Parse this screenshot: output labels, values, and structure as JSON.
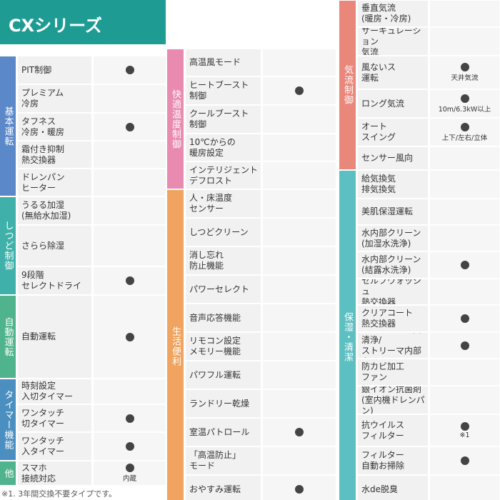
{
  "header": {
    "title": "CXシリーズ",
    "color": "#1e9c94"
  },
  "footnote": "※1. 3年間交換不要タイプです。",
  "columns": [
    {
      "groups": [
        {
          "label": "基本運転",
          "color": "#5b88c8",
          "rows": [
            {
              "name": "PIT制御",
              "mark": true
            },
            {
              "name": "プレミアム\n冷房",
              "mark": false
            },
            {
              "name": "タフネス\n冷房・暖房",
              "mark": true
            },
            {
              "name": "霜付き抑制\n熱交換器",
              "mark": false
            },
            {
              "name": "ドレンパン\nヒーター",
              "mark": false
            }
          ]
        },
        {
          "label": "しつど制御",
          "color": "#3fb1aa",
          "rows": [
            {
              "name": "うるる加湿\n(無給水加湿)",
              "mark": false
            },
            {
              "name": "さらら除湿",
              "mark": false
            },
            {
              "name": "9段階\nセレクトドライ",
              "mark": true
            }
          ]
        },
        {
          "label": "自動運転",
          "color": "#4fb38d",
          "rows": [
            {
              "name": "自動運転",
              "mark": true
            }
          ]
        },
        {
          "label": "タイマー機能",
          "color": "#4a8fc0",
          "rows": [
            {
              "name": "時刻設定\n入切タイマー",
              "mark": false
            },
            {
              "name": "ワンタッチ\n切タイマー",
              "mark": true
            },
            {
              "name": "ワンタッチ\n入タイマー",
              "mark": true
            }
          ]
        },
        {
          "label": "他",
          "color": "#4fb38d",
          "rows": [
            {
              "name": "スマホ\n接続対応",
              "mark": true,
              "note": "内蔵"
            }
          ]
        }
      ]
    },
    {
      "groups": [
        {
          "label": "快適温度制御",
          "color": "#e98bb0",
          "rows": [
            {
              "name": "高温風モード",
              "mark": false
            },
            {
              "name": "ヒートブースト\n制御",
              "mark": true
            },
            {
              "name": "クールブースト\n制御",
              "mark": false
            },
            {
              "name": "10℃からの\n暖房設定",
              "mark": false
            },
            {
              "name": "インテリジェント\nデフロスト",
              "mark": false
            }
          ]
        },
        {
          "label": "生活便利",
          "color": "#f0a45f",
          "rows": [
            {
              "name": "人・床温度\nセンサー",
              "mark": false
            },
            {
              "name": "しつどクリーン",
              "mark": false
            },
            {
              "name": "消し忘れ\n防止機能",
              "mark": false
            },
            {
              "name": "パワーセレクト",
              "mark": false
            },
            {
              "name": "音声応答機能",
              "mark": false
            },
            {
              "name": "リモコン設定\nメモリー機能",
              "mark": false
            },
            {
              "name": "パワフル運転",
              "mark": false
            },
            {
              "name": "ランドリー乾燥",
              "mark": false
            },
            {
              "name": "室温パトロール",
              "mark": true
            },
            {
              "name": "「高温防止」\nモード",
              "mark": false
            },
            {
              "name": "おやすみ運転",
              "mark": true
            }
          ]
        }
      ]
    },
    {
      "groups": [
        {
          "label": "気流制御",
          "color": "#e9877b",
          "rows": [
            {
              "name": "垂直気流\n(暖房・冷房)",
              "mark": false
            },
            {
              "name": "サーキュレーション\n気流",
              "mark": false
            },
            {
              "name": "風ないス\n運転",
              "mark": true,
              "note": "天井気流"
            },
            {
              "name": "ロング気流",
              "mark": true,
              "note": "10m/6.3kW以上"
            },
            {
              "name": "オート\nスイング",
              "mark": true,
              "note": "上下/左右/立体"
            },
            {
              "name": "センサー風向",
              "mark": false
            }
          ]
        },
        {
          "label": "保湿・清潔",
          "color": "#5cbfc1",
          "rows": [
            {
              "name": "給気換気\n排気換気",
              "mark": false
            },
            {
              "name": "美肌保湿運転",
              "mark": false
            },
            {
              "name": "水内部クリーン\n(加湿水洗浄)",
              "mark": false
            },
            {
              "name": "水内部クリーン\n(結露水洗浄)",
              "mark": true
            },
            {
              "name": "セルフウォッシュ\n熱交換器",
              "mark": false
            },
            {
              "name": "クリアコート\n熱交換器",
              "mark": true
            },
            {
              "name": "ストリーマ空気清浄/\nストリーマ内部クリーン",
              "mark": true
            },
            {
              "name": "防カビ加工\nファン",
              "mark": false
            },
            {
              "name": "銀イオン抗菌剤\n(室内機ドレンパン)",
              "mark": false
            },
            {
              "name": "抗ウイルス\nフィルター",
              "mark": true,
              "note": "※1"
            },
            {
              "name": "フィルター\n自動お掃除",
              "mark": true
            },
            {
              "name": "水de脱臭",
              "mark": false
            }
          ]
        }
      ]
    }
  ]
}
